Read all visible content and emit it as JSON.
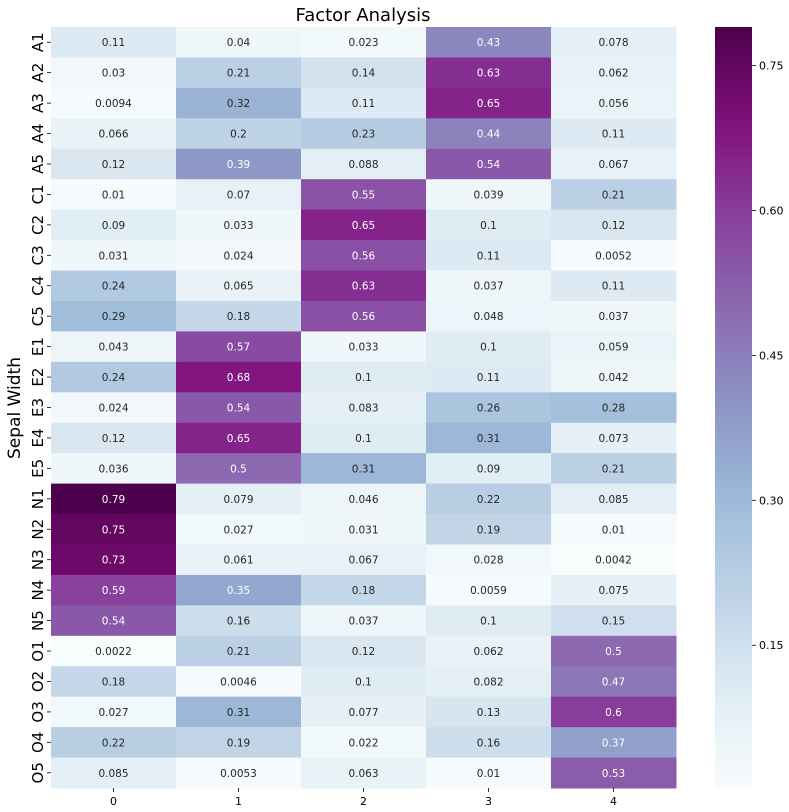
{
  "chart_data": {
    "type": "heatmap",
    "title": "Factor Analysis",
    "xlabel": "",
    "ylabel": "Sepal Width",
    "colormap": "BuPu",
    "x_categories": [
      "0",
      "1",
      "2",
      "3",
      "4"
    ],
    "y_categories": [
      "A1",
      "A2",
      "A3",
      "A4",
      "A5",
      "C1",
      "C2",
      "C3",
      "C4",
      "C5",
      "E1",
      "E2",
      "E3",
      "E4",
      "E5",
      "N1",
      "N2",
      "N3",
      "N4",
      "N5",
      "O1",
      "O2",
      "O3",
      "O4",
      "O5"
    ],
    "values": [
      [
        0.11,
        0.04,
        0.023,
        0.43,
        0.078
      ],
      [
        0.03,
        0.21,
        0.14,
        0.63,
        0.062
      ],
      [
        0.0094,
        0.32,
        0.11,
        0.65,
        0.056
      ],
      [
        0.066,
        0.2,
        0.23,
        0.44,
        0.11
      ],
      [
        0.12,
        0.39,
        0.088,
        0.54,
        0.067
      ],
      [
        0.01,
        0.07,
        0.55,
        0.039,
        0.21
      ],
      [
        0.09,
        0.033,
        0.65,
        0.1,
        0.12
      ],
      [
        0.031,
        0.024,
        0.56,
        0.11,
        0.0052
      ],
      [
        0.24,
        0.065,
        0.63,
        0.037,
        0.11
      ],
      [
        0.29,
        0.18,
        0.56,
        0.048,
        0.037
      ],
      [
        0.043,
        0.57,
        0.033,
        0.1,
        0.059
      ],
      [
        0.24,
        0.68,
        0.1,
        0.11,
        0.042
      ],
      [
        0.024,
        0.54,
        0.083,
        0.26,
        0.28
      ],
      [
        0.12,
        0.65,
        0.1,
        0.31,
        0.073
      ],
      [
        0.036,
        0.5,
        0.31,
        0.09,
        0.21
      ],
      [
        0.79,
        0.079,
        0.046,
        0.22,
        0.085
      ],
      [
        0.75,
        0.027,
        0.031,
        0.19,
        0.01
      ],
      [
        0.73,
        0.061,
        0.067,
        0.028,
        0.0042
      ],
      [
        0.59,
        0.35,
        0.18,
        0.0059,
        0.075
      ],
      [
        0.54,
        0.16,
        0.037,
        0.1,
        0.15
      ],
      [
        0.0022,
        0.21,
        0.12,
        0.062,
        0.5
      ],
      [
        0.18,
        0.0046,
        0.1,
        0.082,
        0.47
      ],
      [
        0.027,
        0.31,
        0.077,
        0.13,
        0.6
      ],
      [
        0.22,
        0.19,
        0.022,
        0.16,
        0.37
      ],
      [
        0.085,
        0.0053,
        0.063,
        0.01,
        0.53
      ]
    ],
    "annotations": [
      [
        "0.11",
        "0.04",
        "0.023",
        "0.43",
        "0.078"
      ],
      [
        "0.03",
        "0.21",
        "0.14",
        "0.63",
        "0.062"
      ],
      [
        "0.0094",
        "0.32",
        "0.11",
        "0.65",
        "0.056"
      ],
      [
        "0.066",
        "0.2",
        "0.23",
        "0.44",
        "0.11"
      ],
      [
        "0.12",
        "0.39",
        "0.088",
        "0.54",
        "0.067"
      ],
      [
        "0.01",
        "0.07",
        "0.55",
        "0.039",
        "0.21"
      ],
      [
        "0.09",
        "0.033",
        "0.65",
        "0.1",
        "0.12"
      ],
      [
        "0.031",
        "0.024",
        "0.56",
        "0.11",
        "0.0052"
      ],
      [
        "0.24",
        "0.065",
        "0.63",
        "0.037",
        "0.11"
      ],
      [
        "0.29",
        "0.18",
        "0.56",
        "0.048",
        "0.037"
      ],
      [
        "0.043",
        "0.57",
        "0.033",
        "0.1",
        "0.059"
      ],
      [
        "0.24",
        "0.68",
        "0.1",
        "0.11",
        "0.042"
      ],
      [
        "0.024",
        "0.54",
        "0.083",
        "0.26",
        "0.28"
      ],
      [
        "0.12",
        "0.65",
        "0.1",
        "0.31",
        "0.073"
      ],
      [
        "0.036",
        "0.5",
        "0.31",
        "0.09",
        "0.21"
      ],
      [
        "0.79",
        "0.079",
        "0.046",
        "0.22",
        "0.085"
      ],
      [
        "0.75",
        "0.027",
        "0.031",
        "0.19",
        "0.01"
      ],
      [
        "0.73",
        "0.061",
        "0.067",
        "0.028",
        "0.0042"
      ],
      [
        "0.59",
        "0.35",
        "0.18",
        "0.0059",
        "0.075"
      ],
      [
        "0.54",
        "0.16",
        "0.037",
        "0.1",
        "0.15"
      ],
      [
        "0.0022",
        "0.21",
        "0.12",
        "0.062",
        "0.5"
      ],
      [
        "0.18",
        "0.0046",
        "0.1",
        "0.082",
        "0.47"
      ],
      [
        "0.027",
        "0.31",
        "0.077",
        "0.13",
        "0.6"
      ],
      [
        "0.22",
        "0.19",
        "0.022",
        "0.16",
        "0.37"
      ],
      [
        "0.085",
        "0.0053",
        "0.063",
        "0.01",
        "0.53"
      ]
    ],
    "colorbar": {
      "vmin": 0.0022,
      "vmax": 0.79,
      "ticks": [
        0.15,
        0.3,
        0.45,
        0.6,
        0.75
      ],
      "tick_labels": [
        "0.15",
        "0.30",
        "0.45",
        "0.60",
        "0.75"
      ],
      "placement": "right"
    },
    "grid": false,
    "legend": "none"
  }
}
